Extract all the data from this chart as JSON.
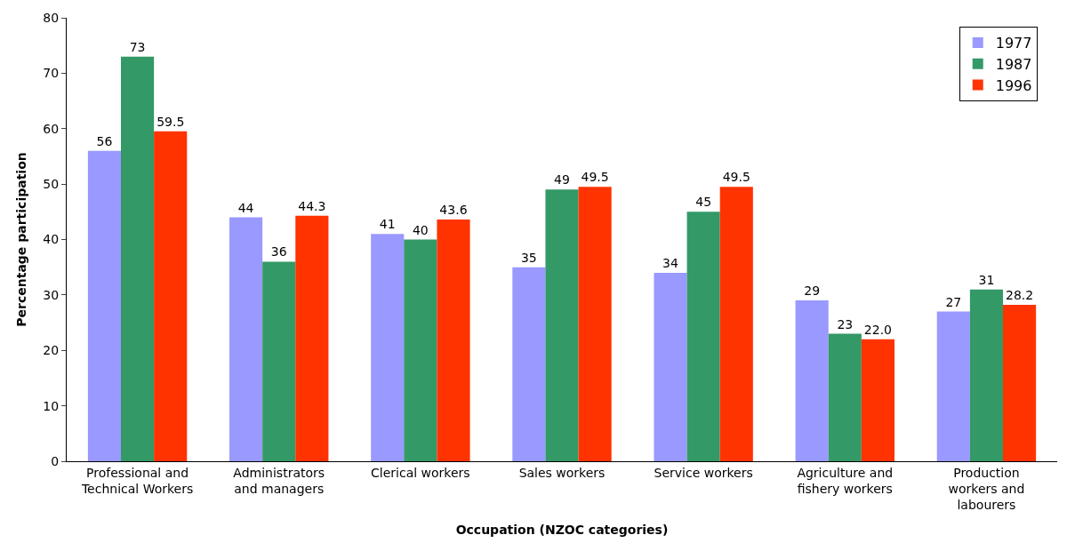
{
  "chart_data": {
    "type": "bar",
    "xlabel": "Occupation (NZOC categories)",
    "ylabel": "Percentage participation",
    "categories": [
      "Professional and\nTechnical Workers",
      "Administrators\nand managers",
      "Clerical workers",
      "Sales workers",
      "Service workers",
      "Agriculture and\nfishery workers",
      "Production\nworkers and\nlabourers"
    ],
    "series": [
      {
        "name": "1977",
        "color": "#9999ff",
        "values": [
          56,
          44,
          41,
          35,
          34,
          29,
          27
        ],
        "value_labels": [
          "56",
          "44",
          "41",
          "35",
          "34",
          "29",
          "27"
        ]
      },
      {
        "name": "1987",
        "color": "#339966",
        "values": [
          73,
          36,
          40,
          49,
          45,
          23,
          31
        ],
        "value_labels": [
          "73",
          "36",
          "40",
          "49",
          "45",
          "23",
          "31"
        ]
      },
      {
        "name": "1996",
        "color": "#ff3300",
        "values": [
          59.5,
          44.3,
          43.6,
          49.5,
          49.5,
          22.0,
          28.2
        ],
        "value_labels": [
          "59.5",
          "44.3",
          "43.6",
          "49.5",
          "49.5",
          "22.0",
          "28.2"
        ]
      }
    ],
    "ylim": [
      0,
      80
    ],
    "yticks": [
      0,
      10,
      20,
      30,
      40,
      50,
      60,
      70,
      80
    ],
    "grid": false,
    "legend": "top right"
  }
}
